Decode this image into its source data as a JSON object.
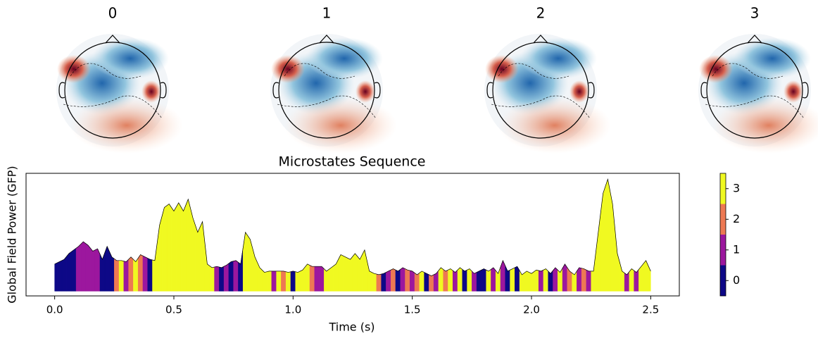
{
  "topomaps": {
    "titles": [
      "0",
      "1",
      "2",
      "3"
    ]
  },
  "chart_data": {
    "type": "area",
    "title": "Microstates Sequence",
    "x_label": "Time (s)",
    "y_label": "Global Field Power (GFP)",
    "xlim": [
      -0.12,
      2.62
    ],
    "xticks": [
      {
        "value": 0,
        "label": "0.0"
      },
      {
        "value": 0.5,
        "label": "0.5"
      },
      {
        "value": 1,
        "label": "1.0"
      },
      {
        "value": 1.5,
        "label": "1.5"
      },
      {
        "value": 2,
        "label": "2.0"
      },
      {
        "value": 2.5,
        "label": "2.5"
      }
    ],
    "ylim": [
      -0.04,
      1.0
    ],
    "x": [
      0.0,
      0.02,
      0.04,
      0.06,
      0.08,
      0.1,
      0.12,
      0.14,
      0.16,
      0.18,
      0.2,
      0.22,
      0.24,
      0.26,
      0.28,
      0.3,
      0.32,
      0.34,
      0.36,
      0.38,
      0.4,
      0.42,
      0.44,
      0.46,
      0.48,
      0.5,
      0.52,
      0.54,
      0.56,
      0.58,
      0.6,
      0.62,
      0.64,
      0.66,
      0.68,
      0.7,
      0.72,
      0.74,
      0.76,
      0.78,
      0.8,
      0.82,
      0.84,
      0.86,
      0.88,
      0.9,
      0.92,
      0.94,
      0.96,
      0.98,
      1.0,
      1.02,
      1.04,
      1.06,
      1.08,
      1.1,
      1.12,
      1.14,
      1.16,
      1.18,
      1.2,
      1.22,
      1.24,
      1.26,
      1.28,
      1.3,
      1.32,
      1.34,
      1.36,
      1.38,
      1.4,
      1.42,
      1.44,
      1.46,
      1.48,
      1.5,
      1.52,
      1.54,
      1.56,
      1.58,
      1.6,
      1.62,
      1.64,
      1.66,
      1.68,
      1.7,
      1.72,
      1.74,
      1.76,
      1.78,
      1.8,
      1.82,
      1.84,
      1.86,
      1.88,
      1.9,
      1.92,
      1.94,
      1.96,
      1.98,
      2.0,
      2.02,
      2.04,
      2.06,
      2.08,
      2.1,
      2.12,
      2.14,
      2.16,
      2.18,
      2.2,
      2.22,
      2.24,
      2.26,
      2.28,
      2.3,
      2.32,
      2.34,
      2.36,
      2.38,
      2.4,
      2.42,
      2.44,
      2.46,
      2.48,
      2.5
    ],
    "values": [
      0.23,
      0.25,
      0.27,
      0.32,
      0.35,
      0.38,
      0.42,
      0.39,
      0.34,
      0.36,
      0.27,
      0.38,
      0.29,
      0.26,
      0.26,
      0.25,
      0.29,
      0.25,
      0.31,
      0.29,
      0.27,
      0.26,
      0.56,
      0.71,
      0.74,
      0.68,
      0.75,
      0.68,
      0.78,
      0.62,
      0.5,
      0.59,
      0.23,
      0.2,
      0.21,
      0.2,
      0.22,
      0.25,
      0.26,
      0.23,
      0.5,
      0.44,
      0.29,
      0.2,
      0.16,
      0.17,
      0.17,
      0.17,
      0.17,
      0.16,
      0.17,
      0.16,
      0.18,
      0.23,
      0.21,
      0.21,
      0.21,
      0.17,
      0.2,
      0.23,
      0.31,
      0.29,
      0.27,
      0.32,
      0.27,
      0.35,
      0.17,
      0.15,
      0.14,
      0.15,
      0.17,
      0.19,
      0.17,
      0.2,
      0.18,
      0.17,
      0.14,
      0.17,
      0.15,
      0.13,
      0.15,
      0.2,
      0.17,
      0.19,
      0.16,
      0.2,
      0.17,
      0.19,
      0.15,
      0.17,
      0.19,
      0.17,
      0.2,
      0.15,
      0.26,
      0.17,
      0.19,
      0.21,
      0.14,
      0.17,
      0.15,
      0.18,
      0.17,
      0.19,
      0.15,
      0.2,
      0.16,
      0.23,
      0.17,
      0.14,
      0.2,
      0.19,
      0.17,
      0.17,
      0.5,
      0.83,
      0.95,
      0.74,
      0.32,
      0.17,
      0.14,
      0.19,
      0.16,
      0.21,
      0.26,
      0.17
    ],
    "states": [
      0,
      0,
      0,
      0,
      0,
      1,
      1,
      1,
      1,
      1,
      0,
      0,
      0,
      2,
      3,
      1,
      2,
      3,
      2,
      1,
      0,
      3,
      3,
      3,
      3,
      3,
      3,
      3,
      3,
      3,
      3,
      3,
      3,
      3,
      1,
      0,
      1,
      0,
      1,
      0,
      3,
      3,
      3,
      3,
      3,
      3,
      1,
      3,
      2,
      3,
      0,
      3,
      3,
      3,
      2,
      1,
      1,
      3,
      3,
      3,
      3,
      3,
      3,
      3,
      3,
      3,
      3,
      3,
      2,
      0,
      1,
      2,
      0,
      1,
      2,
      1,
      2,
      3,
      0,
      2,
      1,
      3,
      2,
      3,
      1,
      3,
      0,
      3,
      1,
      0,
      0,
      3,
      1,
      3,
      1,
      0,
      3,
      0,
      3,
      3,
      3,
      3,
      1,
      3,
      0,
      1,
      3,
      1,
      2,
      3,
      1,
      2,
      1,
      3,
      3,
      3,
      3,
      3,
      3,
      3,
      1,
      3,
      1,
      3,
      3,
      3
    ],
    "state_colors": [
      "#0d0887",
      "#9c179e",
      "#ed7953",
      "#f0f921"
    ],
    "clim": [
      -0.5,
      3.5
    ],
    "colorbar_ticks": [
      0,
      1,
      2,
      3
    ]
  }
}
